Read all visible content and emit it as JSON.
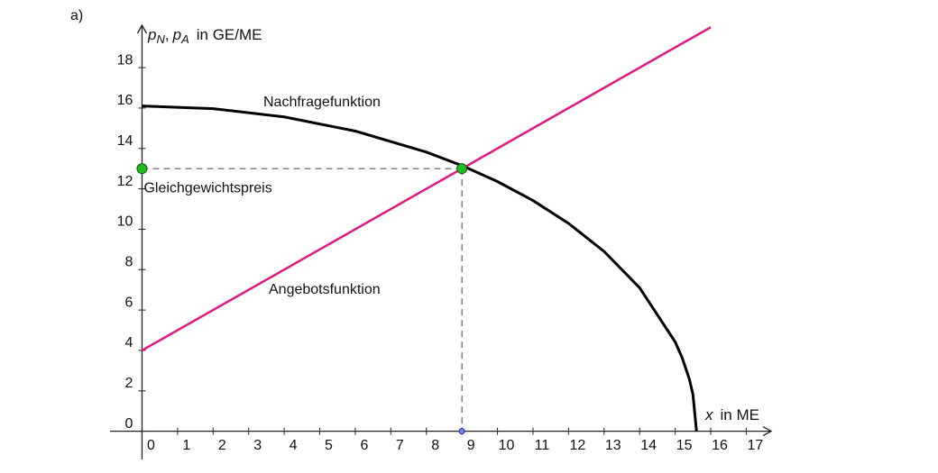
{
  "panel_label": "a)",
  "chart_data": {
    "type": "line",
    "y_label": [
      "p",
      "N",
      ",",
      "p",
      "A",
      "in GE/ME"
    ],
    "x_label": [
      "x",
      "in ME"
    ],
    "xlim": [
      -0.9,
      17.7
    ],
    "ylim": [
      -1.4,
      20.1
    ],
    "xticks": [
      0,
      1,
      2,
      3,
      4,
      5,
      6,
      7,
      8,
      9,
      10,
      11,
      12,
      13,
      14,
      15,
      16,
      17
    ],
    "yticks": [
      0,
      2,
      4,
      6,
      8,
      10,
      12,
      14,
      16,
      18
    ],
    "series": [
      {
        "name": "Nachfragefunktion",
        "color": "#000000",
        "x": [
          0,
          2,
          4,
          6,
          8,
          9,
          10,
          11,
          12,
          13,
          14,
          15,
          15.2,
          15.4,
          15.5,
          15.6
        ],
        "values": [
          16.1,
          15.97,
          15.56,
          14.86,
          13.82,
          13.15,
          12.36,
          11.42,
          10.29,
          8.9,
          7.1,
          4.42,
          3.62,
          2.57,
          1.82,
          0
        ]
      },
      {
        "name": "Angebotsfunktion",
        "color": "#e0197d",
        "x": [
          0,
          16
        ],
        "values": [
          4,
          20
        ]
      }
    ],
    "equilibrium": {
      "label": "Gleichgewichtspreis",
      "x": 9,
      "y": 13,
      "color": "#22bb22"
    }
  }
}
